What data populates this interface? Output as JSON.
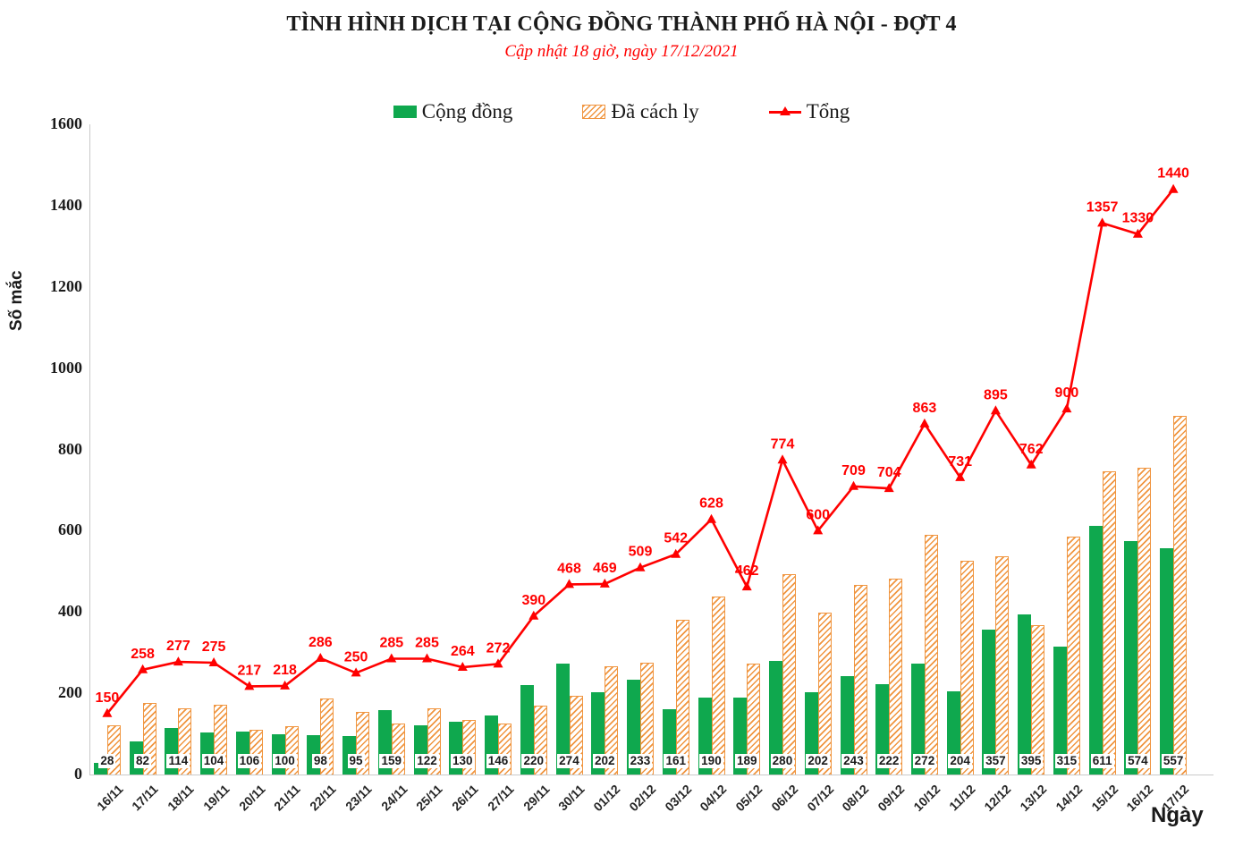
{
  "title": "TÌNH HÌNH DỊCH TẠI CỘNG ĐỒNG THÀNH PHỐ HÀ NỘI - ĐỢT 4",
  "subtitle": "Cập nhật 18 giờ, ngày 17/12/2021",
  "legend": {
    "community": "Cộng đồng",
    "quarantined": "Đã cách ly",
    "total": "Tổng"
  },
  "axes": {
    "y_label": "Số mắc",
    "x_label": "Ngày",
    "y_ticks": [
      0,
      200,
      400,
      600,
      800,
      1000,
      1200,
      1400,
      1600
    ]
  },
  "colors": {
    "green": "#0FA84E",
    "orange": "#F0953F",
    "red": "#FF0000",
    "axis": "#C9C9C9"
  },
  "chart_data": {
    "type": "bar",
    "title": "TÌNH HÌNH DỊCH TẠI CỘNG ĐỒNG THÀNH PHỐ HÀ NỘI - ĐỢT 4",
    "subtitle": "Cập nhật 18 giờ, ngày 17/12/2021",
    "xlabel": "Ngày",
    "ylabel": "Số mắc",
    "ylim": [
      0,
      1600
    ],
    "grid": false,
    "legend_position": "top",
    "categories": [
      "16/11",
      "17/11",
      "18/11",
      "19/11",
      "20/11",
      "21/11",
      "22/11",
      "23/11",
      "24/11",
      "25/11",
      "26/11",
      "27/11",
      "29/11",
      "30/11",
      "01/12",
      "02/12",
      "03/12",
      "04/12",
      "05/12",
      "06/12",
      "07/12",
      "08/12",
      "09/12",
      "10/12",
      "11/12",
      "12/12",
      "13/12",
      "14/12",
      "15/12",
      "16/12",
      "17/12"
    ],
    "series": [
      {
        "name": "Cộng đồng",
        "type": "bar",
        "style": "solid",
        "color": "#0FA84E",
        "values": [
          28,
          82,
          114,
          104,
          106,
          100,
          98,
          95,
          159,
          122,
          130,
          146,
          220,
          274,
          202,
          233,
          161,
          190,
          189,
          280,
          202,
          243,
          222,
          272,
          204,
          357,
          395,
          315,
          611,
          574,
          557
        ],
        "labels_shown": true
      },
      {
        "name": "Đã cách ly",
        "type": "bar",
        "style": "hatched",
        "color": "#F0953F",
        "values": [
          122,
          176,
          163,
          171,
          111,
          118,
          188,
          155,
          126,
          163,
          134,
          126,
          170,
          194,
          267,
          276,
          381,
          438,
          273,
          494,
          398,
          466,
          482,
          591,
          527,
          538,
          367,
          585,
          746,
          756,
          883
        ],
        "labels_shown": false
      },
      {
        "name": "Tổng",
        "type": "line",
        "marker": "triangle",
        "color": "#FF0000",
        "values": [
          150,
          258,
          277,
          275,
          217,
          218,
          286,
          250,
          285,
          285,
          264,
          272,
          390,
          468,
          469,
          509,
          542,
          628,
          462,
          774,
          600,
          709,
          704,
          863,
          731,
          895,
          762,
          900,
          1357,
          1330,
          1440
        ],
        "labels_shown": true
      }
    ]
  }
}
